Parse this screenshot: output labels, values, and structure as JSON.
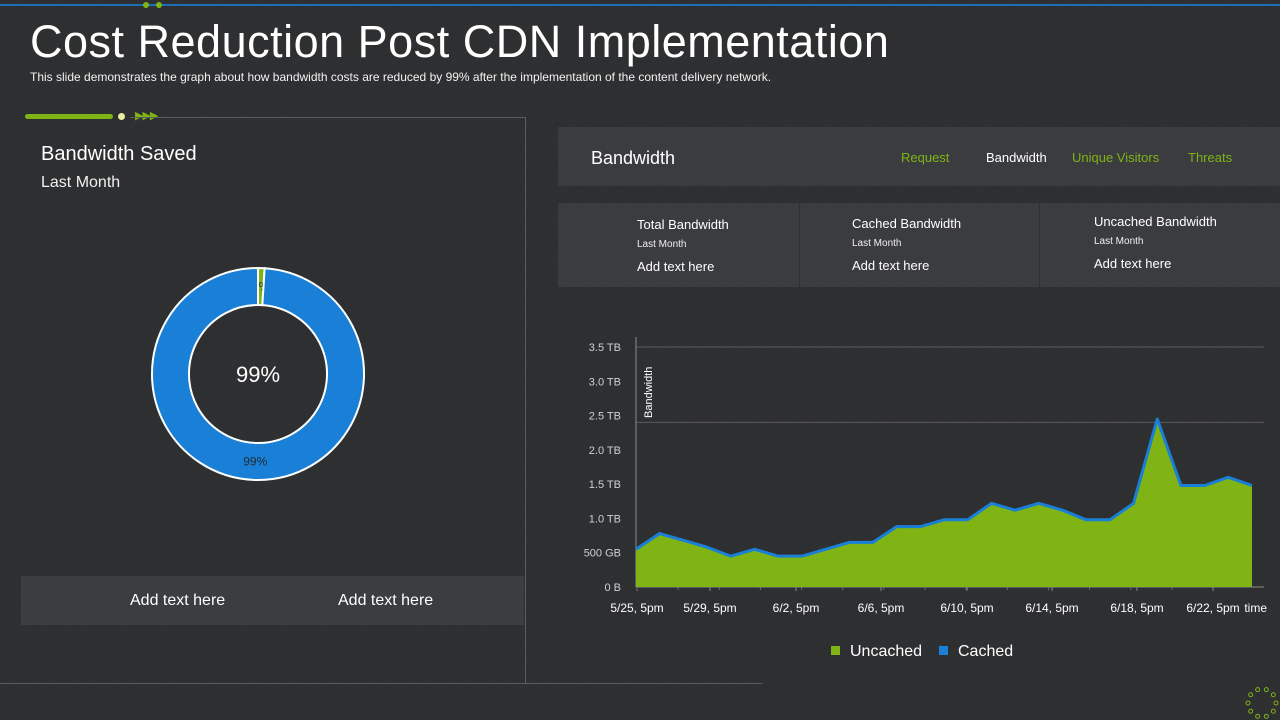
{
  "header": {
    "title": "Cost Reduction Post CDN Implementation",
    "subtitle": "This slide demonstrates the graph about how bandwidth costs are reduced by 99% after the implementation of the content delivery network."
  },
  "left_panel": {
    "title": "Bandwidth Saved",
    "period": "Last Month",
    "center_label": "99%",
    "bottom_texts": [
      "Add text here",
      "Add text here"
    ]
  },
  "right_panel": {
    "title": "Bandwidth",
    "tabs": [
      {
        "label": "Request",
        "color": "#7fb414"
      },
      {
        "label": "Bandwidth",
        "color": "#ffffff"
      },
      {
        "label": "Unique Visitors",
        "color": "#7fb414"
      },
      {
        "label": "Threats",
        "color": "#7fb414"
      }
    ],
    "stats": [
      {
        "label": "Total Bandwidth",
        "period": "Last Month",
        "value": "Add text here"
      },
      {
        "label": "Cached Bandwidth",
        "period": "Last Month",
        "value": "Add text here"
      },
      {
        "label": "Uncached Bandwidth",
        "period": "Last Month",
        "value": "Add text here"
      }
    ]
  },
  "colors": {
    "green": "#7fb414",
    "blue": "#1a7fd6",
    "background": "#2e2f31",
    "panel": "#3b3c3f"
  },
  "chart_data": [
    {
      "type": "pie",
      "categories": [
        "Uncached",
        "Cached"
      ],
      "values": [
        1,
        99
      ],
      "data_labels": [
        "1%",
        "99%"
      ],
      "colors": [
        "#7fb414",
        "#1a7fd6"
      ]
    },
    {
      "type": "area",
      "ylabel": "Bandwidth",
      "xlabel": "time",
      "x_ticks": [
        "5/25, 5pm",
        "5/29, 5pm",
        "6/2, 5pm",
        "6/6, 5pm",
        "6/10, 5pm",
        "6/14, 5pm",
        "6/18, 5pm",
        "6/22, 5pm"
      ],
      "y_ticks": [
        "0 B",
        "500 GB",
        "1.0 TB",
        "1.5 TB",
        "2.0 TB",
        "2.5 TB",
        "3.0 TB",
        "3.5 TB"
      ],
      "ylim_tb": [
        0,
        3.5
      ],
      "grid": "major y at 0, 2.4, 3.5",
      "legend": "bottom",
      "series": [
        {
          "name": "Uncached",
          "color": "#7fb414",
          "values_tb": [
            0.55,
            0.78,
            0.68,
            0.58,
            0.45,
            0.55,
            0.45,
            0.45,
            0.55,
            0.65,
            0.65,
            0.88,
            0.88,
            0.98,
            0.98,
            1.22,
            1.12,
            1.22,
            1.12,
            0.98,
            0.98,
            1.22,
            2.45,
            1.48,
            1.48,
            1.6,
            1.48
          ]
        },
        {
          "name": "Cached",
          "color": "#1a7fd6",
          "values_tb": [
            0.55,
            0.78,
            0.68,
            0.58,
            0.45,
            0.55,
            0.45,
            0.45,
            0.55,
            0.65,
            0.65,
            0.88,
            0.88,
            0.98,
            0.98,
            1.22,
            1.12,
            1.22,
            1.12,
            0.98,
            0.98,
            1.22,
            2.45,
            1.48,
            1.48,
            1.6,
            1.48
          ]
        }
      ]
    }
  ]
}
